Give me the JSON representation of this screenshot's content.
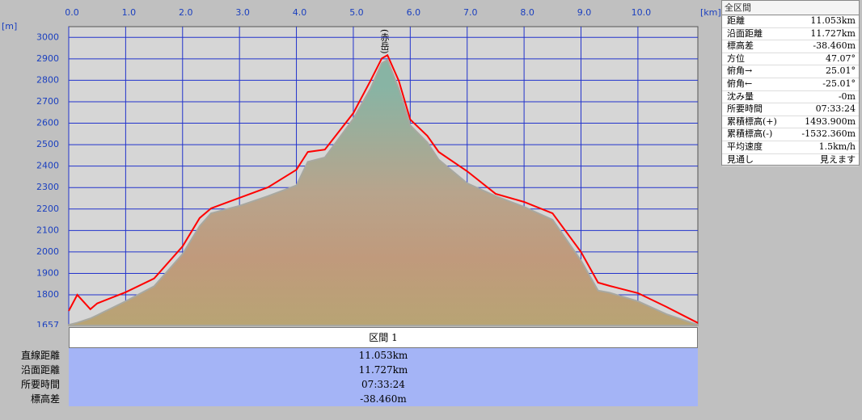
{
  "chart_data": {
    "type": "area-line",
    "x_unit": "[km]",
    "y_unit": "[m]",
    "annotation": "(赤岳)",
    "x": [
      0,
      0.15,
      0.38,
      0.5,
      1.0,
      1.5,
      2.0,
      2.3,
      2.5,
      3.0,
      3.5,
      4.0,
      4.2,
      4.5,
      5.0,
      5.3,
      5.5,
      5.6,
      5.8,
      6.0,
      6.3,
      6.5,
      7.0,
      7.5,
      8.0,
      8.5,
      9.0,
      9.3,
      9.5,
      10.0,
      10.5,
      11.053
    ],
    "series": [
      {
        "color": "#a8a8a0",
        "values": [
          1660,
          1670,
          1690,
          1705,
          1770,
          1840,
          1990,
          2120,
          2180,
          2215,
          2260,
          2310,
          2420,
          2440,
          2620,
          2760,
          2880,
          2895,
          2760,
          2590,
          2510,
          2430,
          2320,
          2260,
          2210,
          2150,
          1960,
          1820,
          1810,
          1770,
          1710,
          1660
        ]
      },
      {
        "color": "#ff0000",
        "values": [
          1725,
          1800,
          1733,
          1760,
          1812,
          1876,
          2026,
          2158,
          2203,
          2252,
          2301,
          2383,
          2466,
          2477,
          2647,
          2797,
          2902,
          2917,
          2797,
          2617,
          2541,
          2466,
          2376,
          2271,
          2233,
          2180,
          2000,
          1857,
          1842,
          1808,
          1744,
          1669
        ]
      }
    ],
    "xlim": [
      0,
      11.053
    ],
    "ylim": [
      1657,
      3050
    ],
    "xticks": [
      {
        "value": 0,
        "label": "0.0"
      },
      {
        "value": 1,
        "label": "1.0"
      },
      {
        "value": 2,
        "label": "2.0"
      },
      {
        "value": 3,
        "label": "3.0"
      },
      {
        "value": 4,
        "label": "4.0"
      },
      {
        "value": 5,
        "label": "5.0"
      },
      {
        "value": 6,
        "label": "6.0"
      },
      {
        "value": 7,
        "label": "7.0"
      },
      {
        "value": 8,
        "label": "8.0"
      },
      {
        "value": 9,
        "label": "9.0"
      },
      {
        "value": 10,
        "label": "10.0"
      }
    ],
    "yticks": [
      1657,
      1800,
      1900,
      2000,
      2100,
      2200,
      2300,
      2400,
      2500,
      2600,
      2700,
      2800,
      2900,
      3000
    ],
    "grid": true,
    "grid_color": "#2233cc"
  },
  "panel": {
    "title": "全区間",
    "rows": [
      [
        "距離",
        "11.053km"
      ],
      [
        "沿面距離",
        "11.727km"
      ],
      [
        "標高差",
        "-38.460m"
      ],
      [
        "方位",
        "47.07°"
      ],
      [
        "俯角→",
        "25.01°"
      ],
      [
        "俯角←",
        "-25.01°"
      ],
      [
        "沈み量",
        "-0m"
      ],
      [
        "所要時間",
        "07:33:24"
      ],
      [
        "累積標高(+)",
        "1493.900m"
      ],
      [
        "累積標高(-)",
        "-1532.360m"
      ],
      [
        "平均速度",
        "1.5km/h"
      ],
      [
        "見通し",
        "見えます"
      ]
    ]
  },
  "segment": {
    "header": "区間 1",
    "rows": [
      [
        "直線距離",
        "11.053km"
      ],
      [
        "沿面距離",
        "11.727km"
      ],
      [
        "所要時間",
        "07:33:24"
      ],
      [
        "標高差",
        "-38.460m"
      ]
    ]
  }
}
